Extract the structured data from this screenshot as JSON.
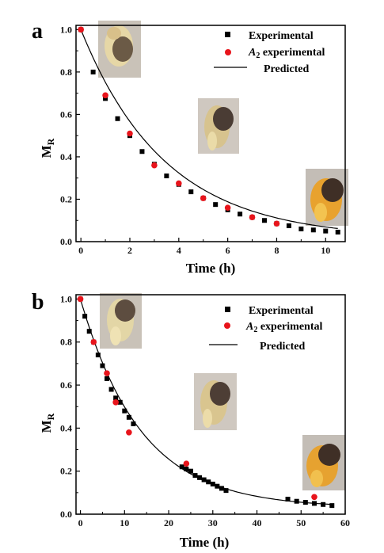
{
  "chart_data": [
    {
      "panel_label": "a",
      "type": "scatter",
      "xlabel": "Time (h)",
      "ylabel": {
        "main": "M",
        "sub": "R"
      },
      "xlim": [
        -0.2,
        10.8
      ],
      "ylim": [
        0,
        1.02
      ],
      "xticks": [
        0,
        2,
        4,
        6,
        8,
        10
      ],
      "yticks": [
        0.0,
        0.2,
        0.4,
        0.6,
        0.8,
        1.0
      ],
      "ytick_labels": [
        "0.0",
        "0.2",
        "0.4",
        "0.6",
        "0.8",
        "1.0"
      ],
      "legend": {
        "placement": "top-right",
        "items": [
          {
            "kind": "square",
            "label": "Experimental"
          },
          {
            "kind": "circle",
            "label_prefix": "A",
            "label_sub": "2",
            "label_suffix": " experimental"
          },
          {
            "kind": "line",
            "label": "Predicted"
          }
        ]
      },
      "series": [
        {
          "name": "Experimental",
          "marker": "square",
          "color": "#000000",
          "x": [
            0,
            0.5,
            1,
            1.5,
            2,
            2.5,
            3,
            3.5,
            4,
            4.5,
            5,
            5.5,
            6,
            6.5,
            7,
            7.5,
            8,
            8.5,
            9,
            9.5,
            10,
            10.5
          ],
          "y": [
            1.0,
            0.8,
            0.675,
            0.58,
            0.5,
            0.425,
            0.365,
            0.31,
            0.27,
            0.235,
            0.205,
            0.175,
            0.15,
            0.13,
            0.115,
            0.1,
            0.085,
            0.075,
            0.06,
            0.055,
            0.05,
            0.045
          ]
        },
        {
          "name": "A2 experimental",
          "marker": "circle",
          "color": "#e8141b",
          "x": [
            0,
            1,
            2,
            3,
            4,
            5,
            6,
            7,
            8
          ],
          "y": [
            1.0,
            0.69,
            0.51,
            0.36,
            0.275,
            0.205,
            0.16,
            0.115,
            0.085
          ]
        },
        {
          "name": "Predicted",
          "marker": "line",
          "color": "#000000",
          "curve": {
            "a": 0.985,
            "b": 0.29,
            "c": 0.015,
            "x_from": 0,
            "x_to": 10.5
          }
        }
      ],
      "photos": [
        {
          "name": "seed-photo-0h",
          "tone": "light"
        },
        {
          "name": "seed-photo-mid",
          "tone": "mid"
        },
        {
          "name": "seed-photo-end",
          "tone": "orange"
        }
      ]
    },
    {
      "panel_label": "b",
      "type": "scatter",
      "xlabel": "Time (h)",
      "ylabel": {
        "main": "M",
        "sub": "R"
      },
      "xlim": [
        -1,
        60
      ],
      "ylim": [
        0,
        1.02
      ],
      "xticks": [
        0,
        10,
        20,
        30,
        40,
        50,
        60
      ],
      "yticks": [
        0.0,
        0.2,
        0.4,
        0.6,
        0.8,
        1.0
      ],
      "ytick_labels": [
        "0.0",
        "0.2",
        "0.4",
        "0.6",
        "0.8",
        "1.0"
      ],
      "legend": {
        "placement": "top-right",
        "items": [
          {
            "kind": "square",
            "label": "Experimental"
          },
          {
            "kind": "circle",
            "label_prefix": "A",
            "label_sub": "2",
            "label_suffix": " experimental"
          },
          {
            "kind": "line",
            "label": "Predicted"
          }
        ]
      },
      "series": [
        {
          "name": "Experimental",
          "marker": "square",
          "color": "#000000",
          "x": [
            0,
            1,
            2,
            3,
            4,
            5,
            6,
            7,
            8,
            9,
            10,
            11,
            12,
            23,
            24,
            25,
            26,
            27,
            28,
            29,
            30,
            31,
            32,
            33,
            47,
            49,
            51,
            53,
            55,
            57
          ],
          "y": [
            1.0,
            0.92,
            0.85,
            0.8,
            0.74,
            0.69,
            0.63,
            0.58,
            0.54,
            0.52,
            0.48,
            0.45,
            0.42,
            0.22,
            0.21,
            0.2,
            0.18,
            0.17,
            0.16,
            0.15,
            0.14,
            0.13,
            0.12,
            0.11,
            0.07,
            0.06,
            0.055,
            0.05,
            0.045,
            0.04
          ]
        },
        {
          "name": "A2 experimental",
          "marker": "circle",
          "color": "#e8141b",
          "x": [
            0,
            3,
            6,
            8,
            11,
            24,
            53
          ],
          "y": [
            1.0,
            0.8,
            0.655,
            0.52,
            0.38,
            0.235,
            0.08
          ]
        },
        {
          "name": "Predicted",
          "marker": "line",
          "color": "#000000",
          "curve": {
            "a": 0.97,
            "b": 0.0728,
            "c": 0.03,
            "x_from": 0,
            "x_to": 57
          }
        }
      ],
      "photos": [
        {
          "name": "seed-photo-0h",
          "tone": "light"
        },
        {
          "name": "seed-photo-mid",
          "tone": "mid"
        },
        {
          "name": "seed-photo-end",
          "tone": "orange"
        }
      ]
    }
  ]
}
